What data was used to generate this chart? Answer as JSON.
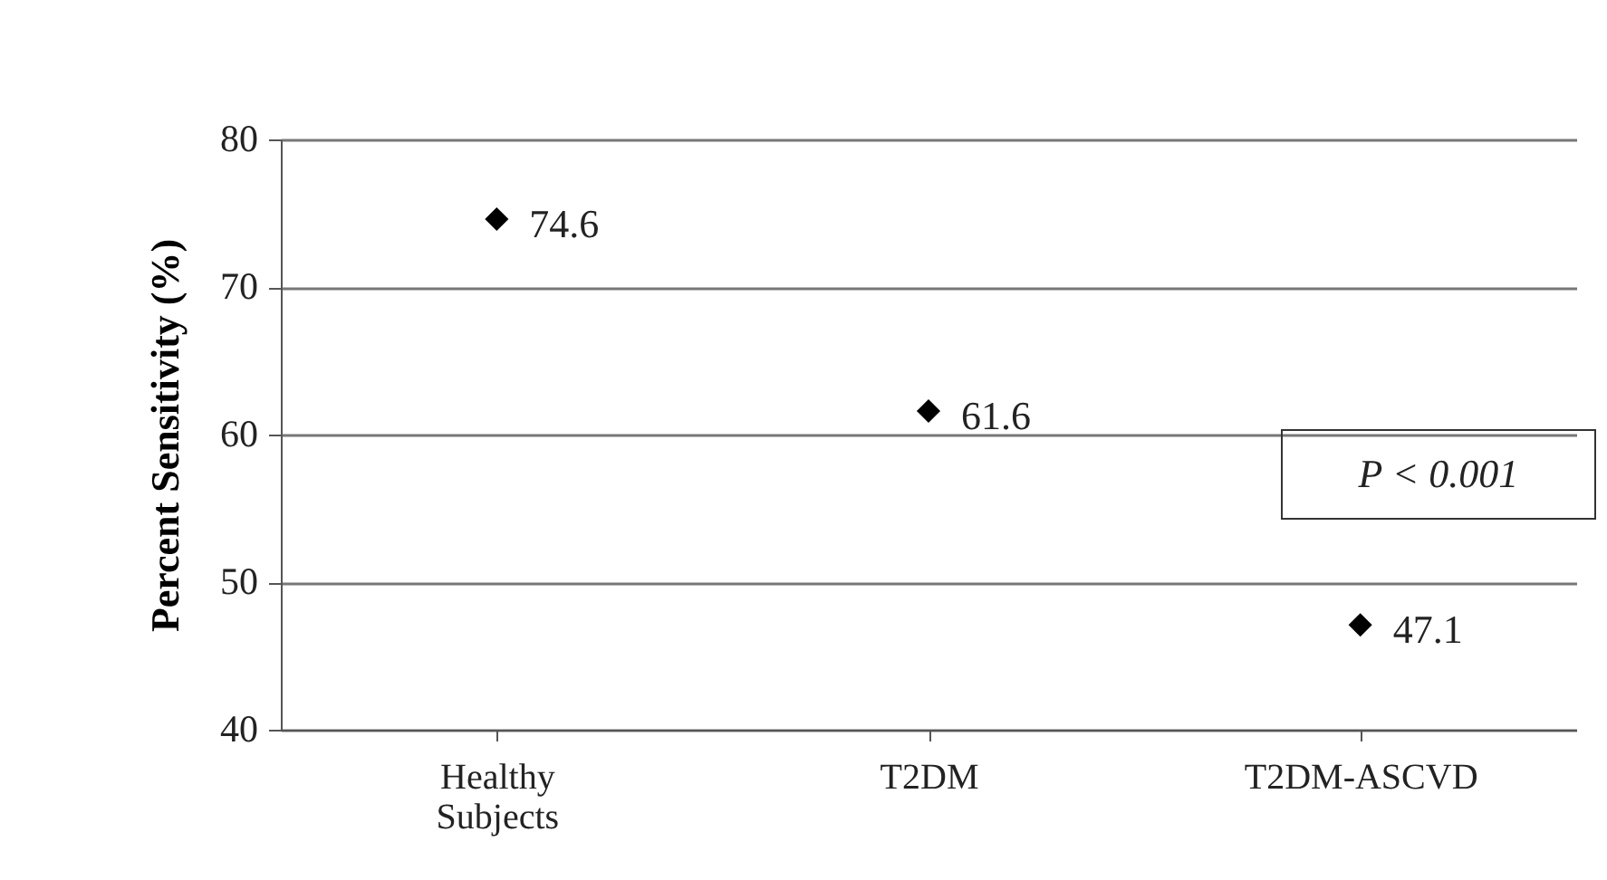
{
  "chart_data": {
    "type": "scatter",
    "ylabel": "Percent Sensitivity (%)",
    "categories": [
      "Healthy Subjects",
      "T2DM",
      "T2DM-ASCVD"
    ],
    "values": [
      74.6,
      61.6,
      47.1
    ],
    "color": "#000000",
    "marker": "diamond",
    "data_labels": true,
    "ylim": [
      40,
      80
    ],
    "yticks": [
      40,
      50,
      60,
      70,
      80
    ],
    "grid": "y",
    "annotations": [
      "P < 0.001"
    ]
  }
}
